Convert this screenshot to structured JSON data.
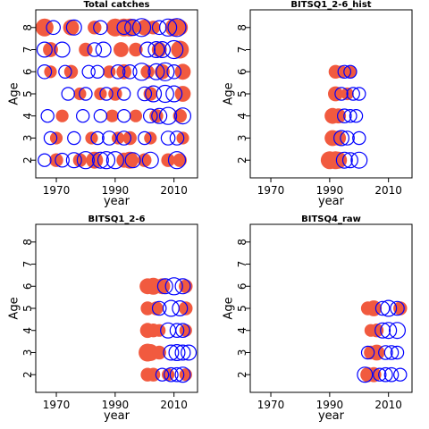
{
  "chart_data": [
    {
      "type": "scatter",
      "title": "Total catches",
      "xlabel": "year",
      "ylabel": "Age",
      "xlim": [
        1963,
        2018
      ],
      "ylim": [
        1.2,
        8.8
      ],
      "xticks": [
        1970,
        1990,
        2010
      ],
      "yticks": [
        2,
        3,
        4,
        5,
        6,
        7,
        8
      ],
      "legend": "none",
      "grid": false,
      "series": [
        {
          "marker": "filled-circle",
          "color": "#f15a3f",
          "values": [
            {
              "age": 8,
              "years": [
                1966,
                1975,
                1983,
                1990,
                1993,
                1995,
                2000,
                2003,
                2010,
                2012
              ],
              "sizes": [
                1.0,
                0.8,
                0.6,
                1.0,
                1.0,
                1.0,
                0.8,
                0.6,
                1.0,
                0.8
              ]
            },
            {
              "age": 7,
              "years": [
                1968,
                1980,
                1992,
                1997,
                2005,
                2012
              ],
              "sizes": [
                0.7,
                0.6,
                0.7,
                0.6,
                0.7,
                1.0
              ]
            },
            {
              "age": 6,
              "years": [
                1968,
                1975,
                1988,
                1993,
                2001,
                2006,
                2013
              ],
              "sizes": [
                0.5,
                0.6,
                0.5,
                0.7,
                0.6,
                0.7,
                0.8
              ]
            },
            {
              "age": 5,
              "years": [
                1978,
                1985,
                1990,
                2002,
                2013
              ],
              "sizes": [
                0.5,
                0.5,
                0.6,
                0.6,
                0.8
              ]
            },
            {
              "age": 4,
              "years": [
                1972,
                1989,
                1997,
                2004,
                2012
              ],
              "sizes": [
                0.5,
                0.5,
                0.5,
                0.6,
                0.6
              ]
            },
            {
              "age": 3,
              "years": [
                1970,
                1982,
                1991,
                1995,
                2002,
                2013
              ],
              "sizes": [
                0.5,
                0.5,
                0.5,
                0.6,
                0.5,
                0.5
              ]
            },
            {
              "age": 2,
              "years": [
                1970,
                1978,
                1983,
                1993,
                1995,
                2000,
                2008,
                2012
              ],
              "sizes": [
                0.6,
                0.6,
                0.9,
                0.7,
                0.9,
                0.6,
                0.6,
                0.6
              ]
            }
          ]
        },
        {
          "marker": "open-circle",
          "color": "#0000ff",
          "values": [
            {
              "age": 8,
              "years": [
                1969,
                1976,
                1985,
                1993,
                1996,
                1999,
                2005,
                2008,
                2011
              ],
              "sizes": [
                0.6,
                0.7,
                0.6,
                0.6,
                0.8,
                1.0,
                0.6,
                0.9,
                1.0
              ]
            },
            {
              "age": 7,
              "years": [
                1966,
                1972,
                1983,
                1986,
                2001,
                2004,
                2006,
                2010
              ],
              "sizes": [
                0.7,
                0.7,
                0.6,
                0.7,
                0.7,
                0.8,
                0.8,
                1.0
              ]
            },
            {
              "age": 6,
              "years": [
                1966,
                1973,
                1981,
                1984,
                1991,
                1995,
                1999,
                2004,
                2007,
                2010
              ],
              "sizes": [
                0.6,
                0.5,
                0.5,
                0.5,
                0.6,
                0.6,
                0.9,
                0.8,
                1.0,
                0.6
              ]
            },
            {
              "age": 5,
              "years": [
                1974,
                1980,
                1987,
                1993,
                2000,
                2003,
                2007,
                2010
              ],
              "sizes": [
                0.5,
                0.5,
                0.5,
                0.5,
                0.6,
                0.8,
                0.9,
                0.8
              ]
            },
            {
              "age": 4,
              "years": [
                1967,
                1979,
                1985,
                1993,
                2002,
                2005,
                2008,
                2013
              ],
              "sizes": [
                0.5,
                0.5,
                0.5,
                0.5,
                0.6,
                0.7,
                0.9,
                0.8
              ]
            },
            {
              "age": 3,
              "years": [
                1968,
                1976,
                1984,
                1988,
                1993,
                2000,
                2008,
                2011
              ],
              "sizes": [
                0.5,
                0.5,
                0.5,
                0.6,
                0.6,
                0.5,
                0.6,
                0.6
              ]
            },
            {
              "age": 2,
              "years": [
                1966,
                1972,
                1976,
                1980,
                1985,
                1987,
                1990,
                1996,
                2002,
                2011
              ],
              "sizes": [
                0.5,
                0.6,
                0.7,
                0.9,
                0.8,
                0.9,
                0.9,
                0.7,
                0.8,
                0.9
              ]
            }
          ]
        }
      ]
    },
    {
      "type": "scatter",
      "title": "BITSQ1_2-6_hist",
      "xlabel": "year",
      "ylabel": "Age",
      "xlim": [
        1963,
        2018
      ],
      "ylim": [
        1.2,
        8.8
      ],
      "xticks": [
        1970,
        1990,
        2010
      ],
      "yticks": [
        2,
        3,
        4,
        5,
        6,
        7,
        8
      ],
      "legend": "none",
      "grid": false,
      "series": [
        {
          "marker": "filled-circle",
          "color": "#f15a3f",
          "values": [
            {
              "age": 6,
              "years": [
                1992,
                1994,
                1997
              ],
              "sizes": [
                0.6,
                0.5,
                0.5
              ]
            },
            {
              "age": 5,
              "years": [
                1992,
                1996
              ],
              "sizes": [
                0.7,
                0.5
              ]
            },
            {
              "age": 4,
              "years": [
                1991,
                1993
              ],
              "sizes": [
                0.8,
                0.7
              ]
            },
            {
              "age": 3,
              "years": [
                1991,
                1993
              ],
              "sizes": [
                0.8,
                0.7
              ]
            },
            {
              "age": 2,
              "years": [
                1990,
                1992,
                1993
              ],
              "sizes": [
                1.0,
                1.0,
                0.9
              ]
            }
          ]
        },
        {
          "marker": "open-circle",
          "color": "#0000ff",
          "values": [
            {
              "age": 6,
              "years": [
                1995,
                1997
              ],
              "sizes": [
                0.5,
                0.5
              ]
            },
            {
              "age": 5,
              "years": [
                1994,
                1998,
                2000
              ],
              "sizes": [
                0.5,
                0.5,
                0.5
              ]
            },
            {
              "age": 4,
              "years": [
                1995,
                1997,
                1999
              ],
              "sizes": [
                0.6,
                0.5,
                0.5
              ]
            },
            {
              "age": 3,
              "years": [
                1994,
                1996,
                2000
              ],
              "sizes": [
                0.7,
                0.6,
                0.5
              ]
            },
            {
              "age": 2,
              "years": [
                1995,
                1997,
                2000
              ],
              "sizes": [
                0.8,
                0.7,
                0.8
              ]
            }
          ]
        }
      ]
    },
    {
      "type": "scatter",
      "title": "BITSQ1_2-6",
      "xlabel": "year",
      "ylabel": "Age",
      "xlim": [
        1963,
        2018
      ],
      "ylim": [
        1.2,
        8.8
      ],
      "xticks": [
        1970,
        1990,
        2010
      ],
      "yticks": [
        2,
        3,
        4,
        5,
        6,
        7,
        8
      ],
      "legend": "none",
      "grid": false,
      "series": [
        {
          "marker": "filled-circle",
          "color": "#f15a3f",
          "values": [
            {
              "age": 6,
              "years": [
                2001,
                2003,
                2006,
                2014
              ],
              "sizes": [
                0.8,
                0.9,
                0.8,
                0.6
              ]
            },
            {
              "age": 5,
              "years": [
                2001,
                2004,
                2014
              ],
              "sizes": [
                0.6,
                0.6,
                0.6
              ]
            },
            {
              "age": 4,
              "years": [
                2001,
                2003,
                2005,
                2014
              ],
              "sizes": [
                0.7,
                0.6,
                0.5,
                0.5
              ]
            },
            {
              "age": 3,
              "years": [
                2001,
                2002,
                2005
              ],
              "sizes": [
                1.0,
                0.9,
                0.6
              ]
            },
            {
              "age": 2,
              "years": [
                2001,
                2003,
                2008,
                2014
              ],
              "sizes": [
                0.6,
                0.6,
                0.5,
                0.5
              ]
            }
          ]
        },
        {
          "marker": "open-circle",
          "color": "#0000ff",
          "values": [
            {
              "age": 6,
              "years": [
                2007,
                2010,
                2013
              ],
              "sizes": [
                0.7,
                0.9,
                0.7
              ]
            },
            {
              "age": 5,
              "years": [
                2005,
                2009,
                2012
              ],
              "sizes": [
                0.6,
                0.8,
                0.7
              ]
            },
            {
              "age": 4,
              "years": [
                2008,
                2011,
                2013
              ],
              "sizes": [
                0.7,
                0.6,
                0.6
              ]
            },
            {
              "age": 3,
              "years": [
                2009,
                2011,
                2013,
                2015
              ],
              "sizes": [
                0.7,
                0.8,
                0.7,
                0.7
              ]
            },
            {
              "age": 2,
              "years": [
                2006,
                2009,
                2011,
                2013
              ],
              "sizes": [
                0.5,
                0.6,
                0.6,
                0.7
              ]
            }
          ]
        }
      ]
    },
    {
      "type": "scatter",
      "title": "BITSQ4_raw",
      "xlabel": "year",
      "ylabel": "Age",
      "xlim": [
        1963,
        2018
      ],
      "ylim": [
        1.2,
        8.8
      ],
      "xticks": [
        1970,
        1990,
        2010
      ],
      "yticks": [
        2,
        3,
        4,
        5,
        6,
        7,
        8
      ],
      "legend": "none",
      "grid": false,
      "series": [
        {
          "marker": "filled-circle",
          "color": "#f15a3f",
          "values": [
            {
              "age": 5,
              "years": [
                2003,
                2005,
                2014
              ],
              "sizes": [
                0.6,
                0.8,
                0.6
              ]
            },
            {
              "age": 4,
              "years": [
                2004,
                2006
              ],
              "sizes": [
                0.5,
                0.6
              ]
            },
            {
              "age": 3,
              "years": [
                2004,
                2006
              ],
              "sizes": [
                0.6,
                0.8
              ]
            },
            {
              "age": 2,
              "years": [
                2003,
                2005
              ],
              "sizes": [
                0.7,
                0.7
              ]
            }
          ]
        },
        {
          "marker": "open-circle",
          "color": "#0000ff",
          "values": [
            {
              "age": 5,
              "years": [
                2008,
                2010,
                2013
              ],
              "sizes": [
                0.6,
                0.8,
                0.6
              ]
            },
            {
              "age": 4,
              "years": [
                2008,
                2010,
                2013
              ],
              "sizes": [
                0.7,
                0.8,
                0.8
              ]
            },
            {
              "age": 3,
              "years": [
                2003,
                2009,
                2011,
                2013
              ],
              "sizes": [
                0.5,
                0.6,
                0.6,
                0.5
              ]
            },
            {
              "age": 2,
              "years": [
                2002,
                2007,
                2009,
                2011,
                2014
              ],
              "sizes": [
                0.7,
                0.5,
                0.6,
                0.6,
                0.5
              ]
            }
          ]
        }
      ]
    }
  ]
}
